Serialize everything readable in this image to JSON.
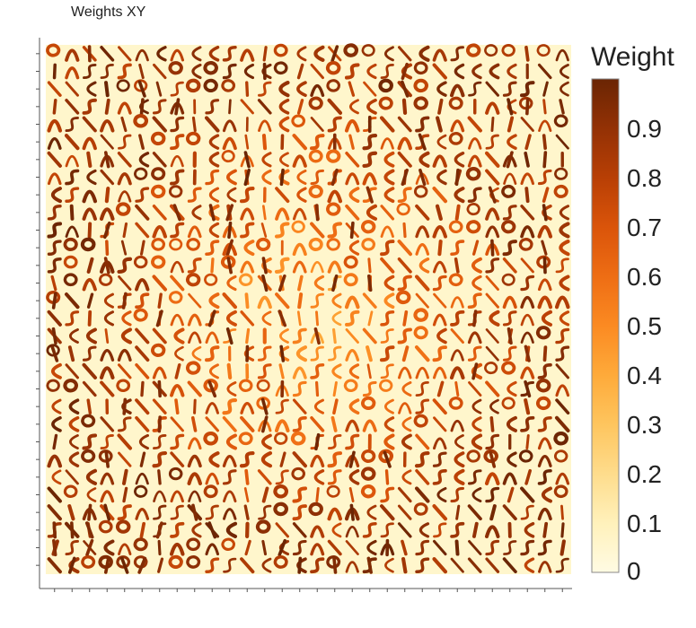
{
  "chart_data": {
    "type": "heatmap",
    "title": "Weights XY",
    "description_of_cells": "Grid of 30 x 30 small weight tiles, each showing a stroke-like digit fragment",
    "grid": {
      "rows": 30,
      "cols": 30
    },
    "colorbar": {
      "title": "Weight",
      "range": [
        0,
        1
      ],
      "ticks": [
        "0",
        "0.1",
        "0.2",
        "0.3",
        "0.4",
        "0.5",
        "0.6",
        "0.7",
        "0.8",
        "0.9"
      ],
      "colormap": [
        "#fffbe3",
        "#fff1bb",
        "#fedc8c",
        "#fec55e",
        "#feaa3a",
        "#fb8a22",
        "#ee6d14",
        "#da540a",
        "#b83f05",
        "#933105",
        "#6a2504"
      ]
    },
    "background_color": "#fff6cc",
    "frame_color": "#555555"
  }
}
